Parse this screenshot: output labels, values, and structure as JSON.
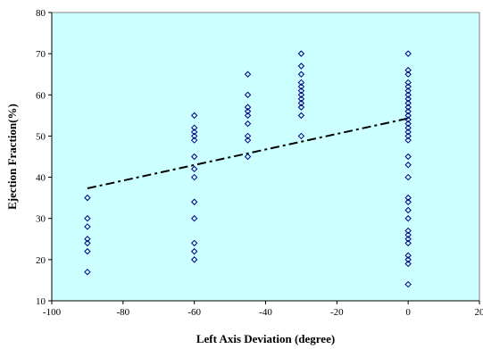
{
  "chart_data": {
    "type": "scatter",
    "xlabel": "Left Axis Deviation (degree)",
    "ylabel": "Ejection Fraction(%)",
    "xlim": [
      -100,
      20
    ],
    "ylim": [
      10,
      80
    ],
    "xticks": [
      -100,
      -80,
      -60,
      -40,
      -20,
      0,
      20
    ],
    "yticks": [
      10,
      20,
      30,
      40,
      50,
      60,
      70,
      80
    ],
    "grid": false,
    "background_color": "#ccffff",
    "marker_color": "#000080",
    "trendline_color": "#000000",
    "points": [
      {
        "x": -90,
        "y": 35
      },
      {
        "x": -90,
        "y": 30
      },
      {
        "x": -90,
        "y": 28
      },
      {
        "x": -90,
        "y": 25
      },
      {
        "x": -90,
        "y": 24
      },
      {
        "x": -90,
        "y": 22
      },
      {
        "x": -90,
        "y": 17
      },
      {
        "x": -60,
        "y": 55
      },
      {
        "x": -60,
        "y": 52
      },
      {
        "x": -60,
        "y": 51
      },
      {
        "x": -60,
        "y": 50
      },
      {
        "x": -60,
        "y": 49
      },
      {
        "x": -60,
        "y": 45
      },
      {
        "x": -60,
        "y": 42
      },
      {
        "x": -60,
        "y": 40
      },
      {
        "x": -60,
        "y": 34
      },
      {
        "x": -60,
        "y": 30
      },
      {
        "x": -60,
        "y": 24
      },
      {
        "x": -60,
        "y": 22
      },
      {
        "x": -60,
        "y": 20
      },
      {
        "x": -45,
        "y": 65
      },
      {
        "x": -45,
        "y": 60
      },
      {
        "x": -45,
        "y": 57
      },
      {
        "x": -45,
        "y": 56
      },
      {
        "x": -45,
        "y": 55
      },
      {
        "x": -45,
        "y": 53
      },
      {
        "x": -45,
        "y": 50
      },
      {
        "x": -45,
        "y": 49
      },
      {
        "x": -45,
        "y": 45
      },
      {
        "x": -30,
        "y": 70
      },
      {
        "x": -30,
        "y": 67
      },
      {
        "x": -30,
        "y": 65
      },
      {
        "x": -30,
        "y": 63
      },
      {
        "x": -30,
        "y": 62
      },
      {
        "x": -30,
        "y": 61
      },
      {
        "x": -30,
        "y": 60
      },
      {
        "x": -30,
        "y": 59
      },
      {
        "x": -30,
        "y": 58
      },
      {
        "x": -30,
        "y": 57
      },
      {
        "x": -30,
        "y": 55
      },
      {
        "x": -30,
        "y": 50
      },
      {
        "x": 0,
        "y": 70
      },
      {
        "x": 0,
        "y": 66
      },
      {
        "x": 0,
        "y": 65
      },
      {
        "x": 0,
        "y": 63
      },
      {
        "x": 0,
        "y": 62
      },
      {
        "x": 0,
        "y": 61
      },
      {
        "x": 0,
        "y": 60
      },
      {
        "x": 0,
        "y": 59
      },
      {
        "x": 0,
        "y": 58
      },
      {
        "x": 0,
        "y": 57
      },
      {
        "x": 0,
        "y": 56
      },
      {
        "x": 0,
        "y": 55
      },
      {
        "x": 0,
        "y": 54
      },
      {
        "x": 0,
        "y": 53
      },
      {
        "x": 0,
        "y": 52
      },
      {
        "x": 0,
        "y": 51
      },
      {
        "x": 0,
        "y": 50
      },
      {
        "x": 0,
        "y": 49
      },
      {
        "x": 0,
        "y": 45
      },
      {
        "x": 0,
        "y": 43
      },
      {
        "x": 0,
        "y": 40
      },
      {
        "x": 0,
        "y": 35
      },
      {
        "x": 0,
        "y": 34
      },
      {
        "x": 0,
        "y": 32
      },
      {
        "x": 0,
        "y": 30
      },
      {
        "x": 0,
        "y": 27
      },
      {
        "x": 0,
        "y": 26
      },
      {
        "x": 0,
        "y": 25
      },
      {
        "x": 0,
        "y": 24
      },
      {
        "x": 0,
        "y": 21
      },
      {
        "x": 0,
        "y": 20
      },
      {
        "x": 0,
        "y": 19
      },
      {
        "x": 0,
        "y": 14
      }
    ],
    "trendline": {
      "style": "dash-dot",
      "x": [
        -90,
        0
      ],
      "y": [
        37.3,
        54.3
      ]
    }
  }
}
